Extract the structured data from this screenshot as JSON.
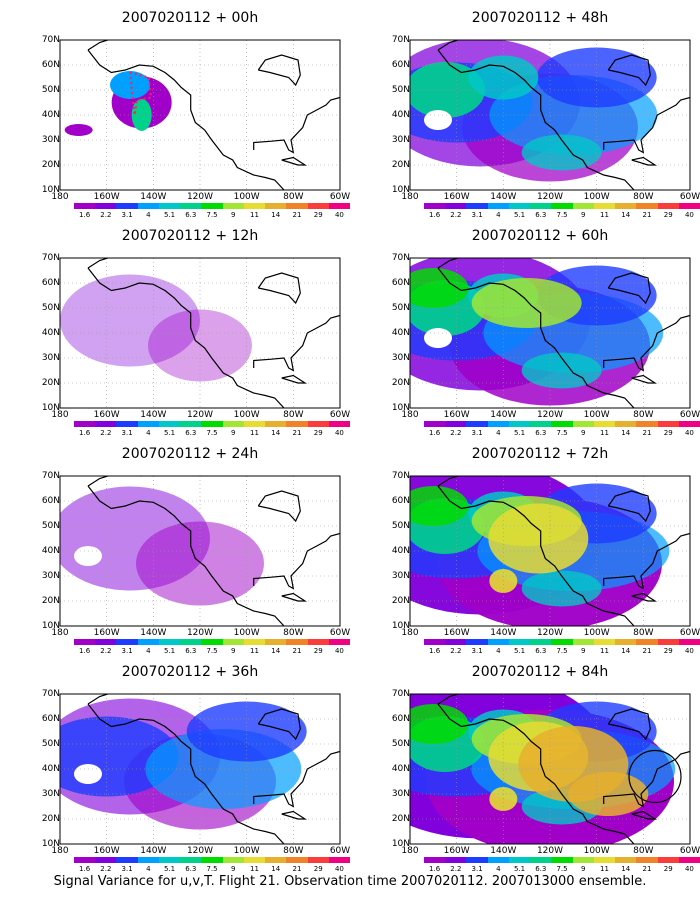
{
  "panels": [
    {
      "title": "2007020112 + 00h",
      "intensity": 0,
      "marks": "target"
    },
    {
      "title": "2007020112 + 12h",
      "intensity": 1,
      "marks": ""
    },
    {
      "title": "2007020112 + 24h",
      "intensity": 2,
      "marks": ""
    },
    {
      "title": "2007020112 + 36h",
      "intensity": 3,
      "marks": ""
    },
    {
      "title": "2007020112 + 48h",
      "intensity": 4,
      "marks": ""
    },
    {
      "title": "2007020112 + 60h",
      "intensity": 5,
      "marks": ""
    },
    {
      "title": "2007020112 + 72h",
      "intensity": 6,
      "marks": ""
    },
    {
      "title": "2007020112 + 84h",
      "intensity": 7,
      "marks": "circle"
    }
  ],
  "lat_labels": [
    "70N",
    "60N",
    "50N",
    "40N",
    "30N",
    "20N",
    "10N"
  ],
  "lon_labels": [
    "180",
    "160W",
    "140W",
    "120W",
    "100W",
    "80W",
    "60W"
  ],
  "colorbar": {
    "labels": [
      "1.6",
      "2.2",
      "3.1",
      "4",
      "5.1",
      "6.3",
      "7.5",
      "9",
      "11",
      "14",
      "21",
      "29",
      "40"
    ],
    "colors": [
      "#a000c8",
      "#8200dc",
      "#1e3cff",
      "#00a0ff",
      "#00c8c8",
      "#00d28c",
      "#00dc00",
      "#a0e632",
      "#e6dc32",
      "#e6af2d",
      "#f08228",
      "#fa3c3c",
      "#f00082"
    ]
  },
  "caption": "Signal Variance for u,v,T. Flight 21. Observation time 2007020112. 2007013000 ensemble."
}
